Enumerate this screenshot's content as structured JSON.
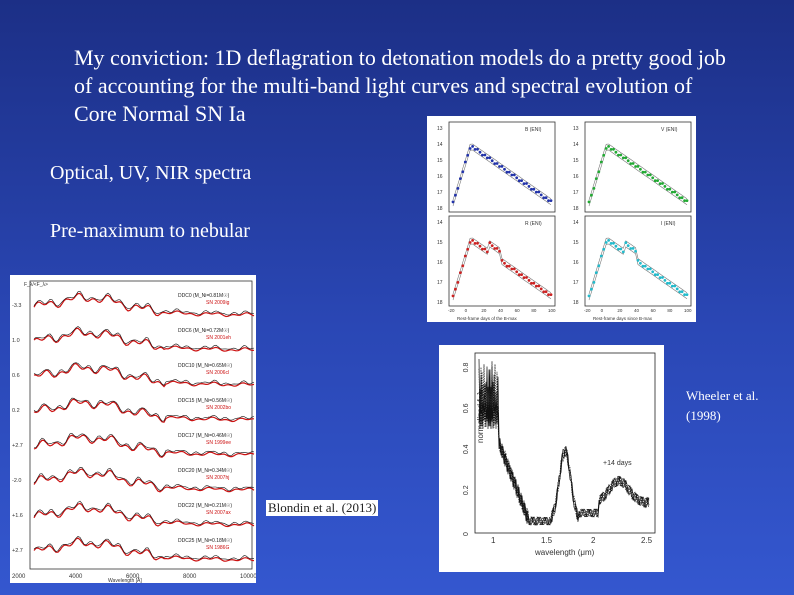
{
  "slide": {
    "title": "My conviction: 1D deflagration to detonation models do a pretty good job of accounting for the multi-band light curves and spectral evolution of Core Normal SN Ia",
    "line1": "Optical, UV, NIR spectra",
    "line2": "Pre-maximum to nebular",
    "credit_wheeler": "Wheeler et al. (1998)",
    "credit_blondin": "Blondin et al. (2013)"
  },
  "lightcurve_panels": {
    "panels": [
      {
        "label": "B (ENI)",
        "color": "#2233aa"
      },
      {
        "label": "V (ENI)",
        "color": "#22aa33"
      },
      {
        "label": "R (ENI)",
        "color": "#cc2222"
      },
      {
        "label": "I (ENI)",
        "color": "#22bbcc"
      }
    ],
    "xlabel_left": "Rest-frame days of the B-max",
    "xlabel_right": "Rest-frame days since B-max",
    "x_ticks": [
      "-20",
      "0",
      "20",
      "40",
      "60",
      "80",
      "100"
    ],
    "y_ticks_top": [
      "13",
      "14",
      "15",
      "16",
      "17",
      "18"
    ],
    "y_ticks_bottom": [
      "14",
      "15",
      "16",
      "17",
      "18"
    ]
  },
  "spectra_panel": {
    "header": "F_λ/<F_λ>",
    "rows": [
      {
        "phase": "-3.3",
        "model": "DDC0 (M_Ni=0.81M☉)",
        "sn": "SN 2009ig"
      },
      {
        "phase": "1.0",
        "model": "DDC6 (M_Ni=0.72M☉)",
        "sn": "SN 2001eh"
      },
      {
        "phase": "0.6",
        "model": "DDC10 (M_Ni=0.65M☉)",
        "sn": "SN 2006cl"
      },
      {
        "phase": "0.2",
        "model": "DDC15 (M_Ni=0.56M☉)",
        "sn": "SN 2002bo"
      },
      {
        "phase": "+2.7",
        "model": "DDC17 (M_Ni=0.46M☉)",
        "sn": "SN 1999ee"
      },
      {
        "phase": "-2.0",
        "model": "DDC20 (M_Ni=0.34M☉)",
        "sn": "SN 2007hj"
      },
      {
        "phase": "+1.6",
        "model": "DDC22 (M_Ni=0.21M☉)",
        "sn": "SN 2007ax"
      },
      {
        "phase": "+2.7",
        "model": "DDC25 (M_Ni=0.18M☉)",
        "sn": "SN 1986G"
      }
    ],
    "x_ticks": [
      "2000",
      "4000",
      "6000",
      "8000",
      "10000"
    ],
    "xlabel": "Wavelength [Å]"
  },
  "nir_panel": {
    "y_ticks": [
      "0",
      "0.2",
      "0.4",
      "0.6",
      "0.8"
    ],
    "x_ticks": [
      "1",
      "1.5",
      "2",
      "2.5"
    ],
    "ylabel": "normalized f_λ",
    "xlabel": "wavelength (μm)",
    "annotation": "+14 days"
  }
}
